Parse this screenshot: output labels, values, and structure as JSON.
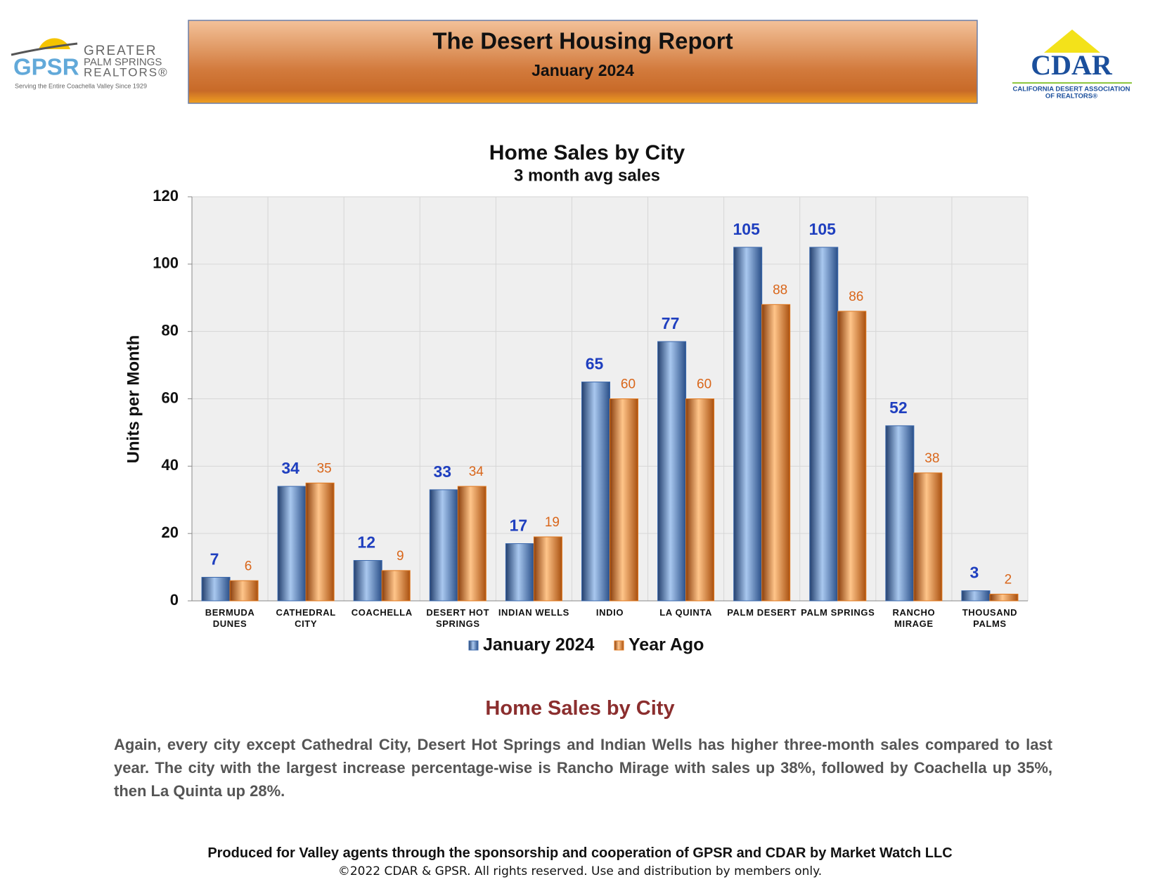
{
  "header": {
    "title": "The Desert Housing Report",
    "subtitle": "January 2024"
  },
  "logos": {
    "gpsr": {
      "mark": "GPSR",
      "lines": [
        "GREATER",
        "PALM SPRINGS",
        "REALTORS®"
      ],
      "tagline": "Serving the Entire Coachella Valley Since 1929"
    },
    "cdar": {
      "mark": "CDAR",
      "lines": [
        "CALIFORNIA DESERT ASSOCIATION",
        "OF REALTORS®"
      ]
    }
  },
  "chart_data": {
    "type": "bar",
    "title": "Home Sales by City",
    "subtitle": "3 month avg sales",
    "y_label": "Units per Month",
    "categories": [
      "BERMUDA DUNES",
      "CATHEDRAL CITY",
      "COACHELLA",
      "DESERT HOT SPRINGS",
      "INDIAN WELLS",
      "INDIO",
      "LA QUINTA",
      "PALM DESERT",
      "PALM SPRINGS",
      "RANCHO MIRAGE",
      "THOUSAND PALMS"
    ],
    "series": [
      {
        "name": "January 2024",
        "color": "#3a68ad",
        "label_color": "#1f3fbf",
        "values": [
          7,
          34,
          12,
          33,
          17,
          65,
          77,
          105,
          105,
          52,
          3
        ]
      },
      {
        "name": "Year Ago",
        "color": "#e0781e",
        "label_color": "#d9661a",
        "values": [
          6,
          35,
          9,
          34,
          19,
          60,
          60,
          88,
          86,
          38,
          2
        ]
      }
    ],
    "ylim": [
      0,
      120
    ],
    "yticks": [
      0,
      20,
      40,
      60,
      80,
      100,
      120
    ],
    "grid": true,
    "legend": "bottom"
  },
  "section": {
    "heading": "Home Sales by City",
    "body": "Again, every city except Cathedral City, Desert Hot Springs and Indian Wells has higher three-month sales compared to last year. The city with the largest increase percentage-wise is Rancho Mirage with sales up 38%, followed by Coachella up 35%, then La Quinta up 28%."
  },
  "footer": {
    "line1": "Produced for Valley agents through the sponsorship and cooperation of GPSR and CDAR by Market Watch LLC",
    "line2": "©2022 CDAR & GPSR.  All rights reserved.  Use and distribution by members only."
  }
}
